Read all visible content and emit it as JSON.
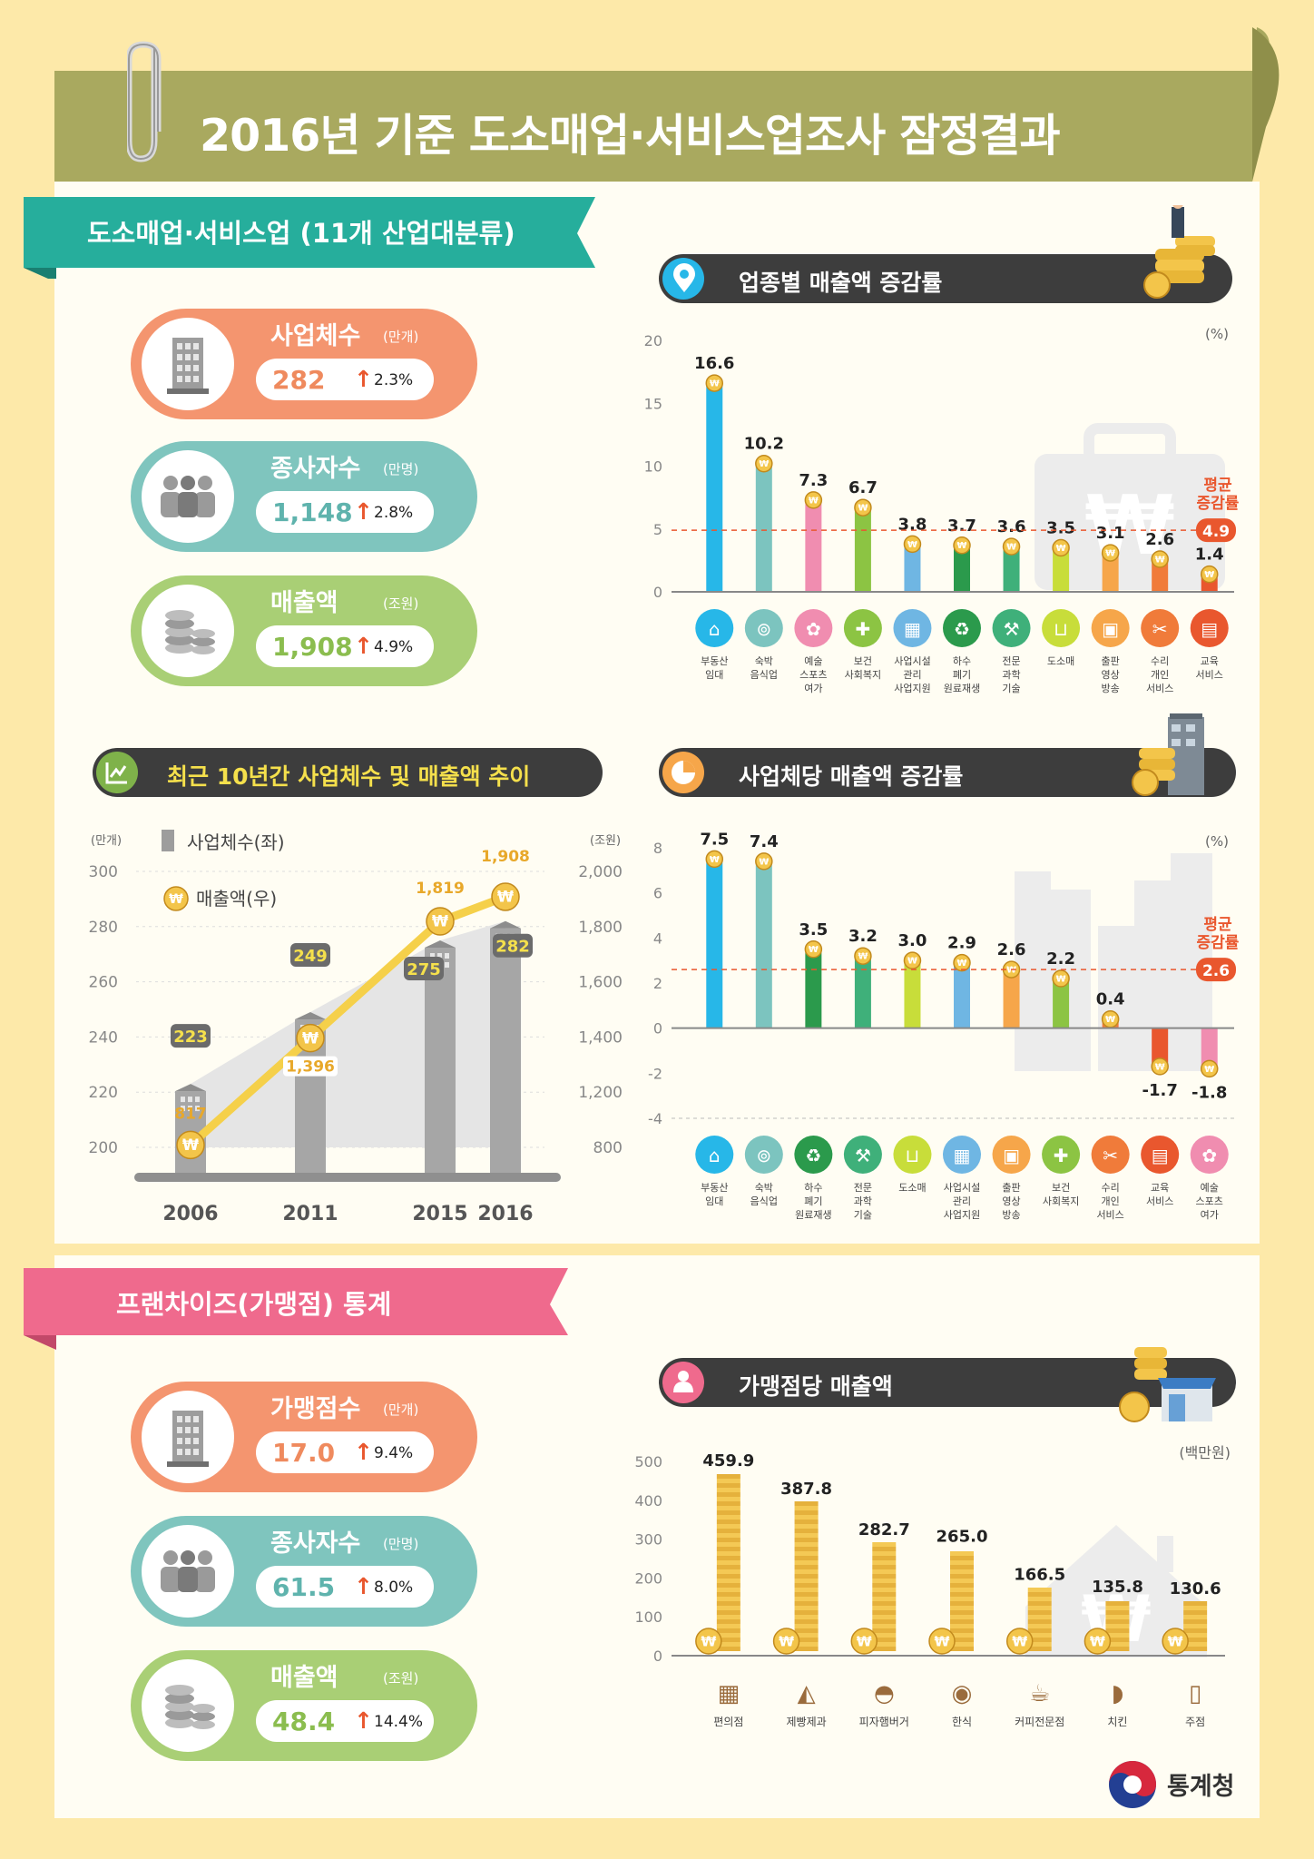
{
  "title": "2016년 기준 도소매업·서비스업조사 잠정결과",
  "section1": {
    "heading": "도소매업·서비스업 (11개 산업대분류)"
  },
  "kpis1": [
    {
      "label": "사업체수",
      "unit": "(만개)",
      "value": "282",
      "change": "2.3%",
      "color": "#f4956f",
      "vcolor": "#ef8a5e",
      "icon": "building-icon"
    },
    {
      "label": "종사자수",
      "unit": "(만명)",
      "value": "1,148",
      "change": "2.8%",
      "color": "#7fc5be",
      "vcolor": "#5fb3ad",
      "icon": "people-icon"
    },
    {
      "label": "매출액",
      "unit": "(조원)",
      "value": "1,908",
      "change": "4.9%",
      "color": "#a9cf75",
      "vcolor": "#8bbd4f",
      "icon": "coins-icon"
    }
  ],
  "chart1_header": "업종별 매출액 증감률",
  "chart2_header": "최근 10년간 사업체수 및 매출액 추이",
  "chart3_header": "사업체당 매출액 증감률",
  "section2": {
    "heading": "프랜차이즈(가맹점) 통계"
  },
  "kpis2": [
    {
      "label": "가맹점수",
      "unit": "(만개)",
      "value": "17.0",
      "change": "9.4%",
      "color": "#f4956f",
      "vcolor": "#ef8a5e",
      "icon": "building-icon"
    },
    {
      "label": "종사자수",
      "unit": "(만명)",
      "value": "61.5",
      "change": "8.0%",
      "color": "#7fc5be",
      "vcolor": "#5fb3ad",
      "icon": "people-icon"
    },
    {
      "label": "매출액",
      "unit": "(조원)",
      "value": "48.4",
      "change": "14.4%",
      "color": "#a9cf75",
      "vcolor": "#8bbd4f",
      "icon": "coins-icon"
    }
  ],
  "chart4_header": "가맹점당 매출액",
  "footer": {
    "agency": "통계청"
  },
  "chart_data": [
    {
      "type": "bar",
      "title": "업종별 매출액 증감률",
      "unit": "(%)",
      "ylim": [
        0,
        20
      ],
      "yticks": [
        0,
        5,
        10,
        15,
        20
      ],
      "categories": [
        "부동산\n임대",
        "숙박\n음식업",
        "예술\n스포츠\n여가",
        "보건\n사회복지",
        "사업시설\n관리\n사업지원",
        "하수\n폐기\n원료재생",
        "전문\n과학\n기술",
        "도소매",
        "출판\n영상\n방송",
        "수리\n개인\n서비스",
        "교육\n서비스"
      ],
      "values": [
        16.6,
        10.2,
        7.3,
        6.7,
        3.8,
        3.7,
        3.6,
        3.5,
        3.1,
        2.6,
        1.4
      ],
      "colors": [
        "#27b7e8",
        "#7cc4bf",
        "#f08db0",
        "#8cc443",
        "#6fb6e3",
        "#2b9a4c",
        "#3fb07a",
        "#c8dd3a",
        "#f6a64a",
        "#f07b3a",
        "#e9572e"
      ],
      "average": {
        "label": "평균\n증감률",
        "value": 4.9
      }
    },
    {
      "type": "bar",
      "title": "최근 10년간 사업체수 및 매출액 추이",
      "categories": [
        "2006",
        "2011",
        "2015",
        "2016"
      ],
      "series": [
        {
          "name": "사업체수(좌)",
          "unit": "(만개)",
          "values": [
            223,
            249,
            275,
            282
          ]
        },
        {
          "name": "매출액(우)",
          "unit": "(조원)",
          "values": [
            817,
            1396,
            1819,
            1908
          ]
        }
      ],
      "ylim_left": [
        200,
        300
      ],
      "yticks_left": [
        200,
        220,
        240,
        260,
        280,
        300
      ],
      "ylim_right": [
        800,
        2000
      ],
      "yticks_right": [
        "800",
        "1,200",
        "1,400",
        "1,600",
        "1,800",
        "2,000"
      ],
      "labels_series2": [
        "817",
        "1,396",
        "1,819",
        "1,908"
      ]
    },
    {
      "type": "bar",
      "title": "사업체당 매출액 증감률",
      "unit": "(%)",
      "ylim": [
        -4,
        8
      ],
      "yticks": [
        -4,
        -2,
        0,
        2,
        4,
        6,
        8
      ],
      "categories": [
        "부동산\n임대",
        "숙박\n음식업",
        "하수\n폐기\n원료재생",
        "전문\n과학\n기술",
        "도소매",
        "사업시설\n관리\n사업지원",
        "출판\n영상\n방송",
        "보건\n사회복지",
        "수리\n개인\n서비스",
        "교육\n서비스",
        "예술\n스포츠\n여가"
      ],
      "values": [
        7.5,
        7.4,
        3.5,
        3.2,
        3.0,
        2.9,
        2.6,
        2.2,
        0.4,
        -1.7,
        -1.8
      ],
      "colors": [
        "#27b7e8",
        "#7cc4bf",
        "#2b9a4c",
        "#3fb07a",
        "#c8dd3a",
        "#6fb6e3",
        "#f6a64a",
        "#8cc443",
        "#f07b3a",
        "#e9572e",
        "#f08db0"
      ],
      "average": {
        "label": "평균\n증감률",
        "value": 2.6
      }
    },
    {
      "type": "bar",
      "title": "가맹점당 매출액",
      "unit": "(백만원)",
      "ylim": [
        0,
        500
      ],
      "yticks": [
        0,
        100,
        200,
        300,
        400,
        500
      ],
      "categories": [
        "편의점",
        "제빵제과",
        "피자햄버거",
        "한식",
        "커피전문점",
        "치킨",
        "주점"
      ],
      "values": [
        459.9,
        387.8,
        282.7,
        265.0,
        166.5,
        135.8,
        130.6
      ],
      "value_labels": [
        "459.9",
        "387.8",
        "282.7",
        "265.0",
        "166.5",
        "135.8",
        "130.6"
      ]
    }
  ]
}
